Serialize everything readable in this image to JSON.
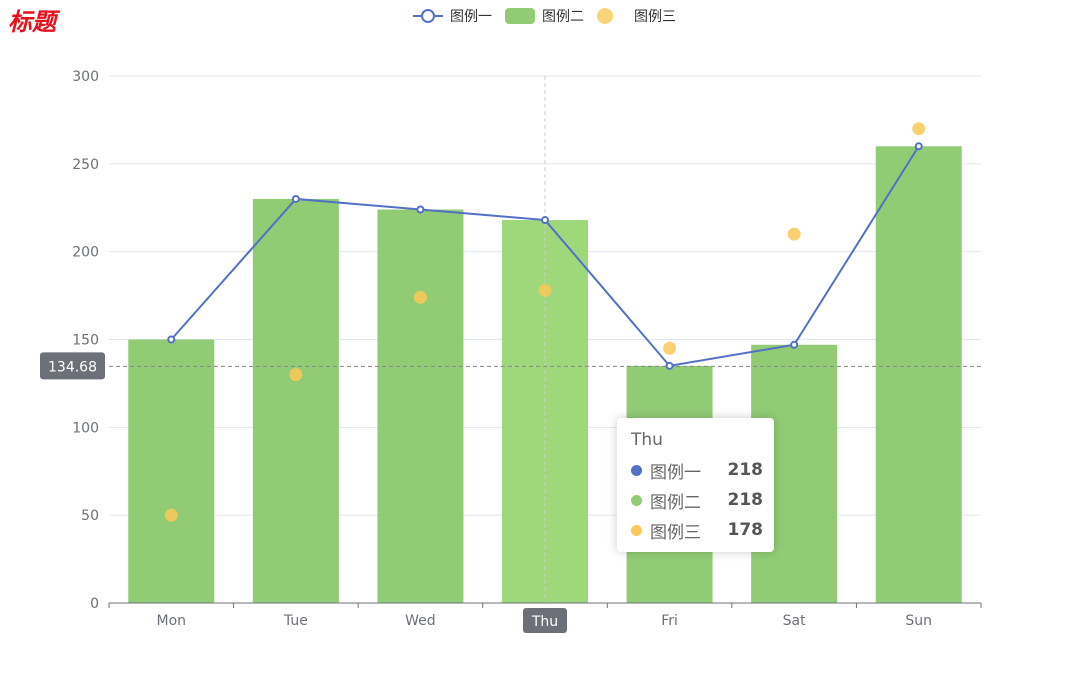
{
  "title": "标题",
  "legend": [
    "图例一",
    "图例二",
    "图例三"
  ],
  "colors": {
    "line": "#5470c6",
    "bar": "#91cc75",
    "scatter": "#fac858",
    "title": "#e8101c"
  },
  "chart_data": {
    "type": "bar",
    "categories": [
      "Mon",
      "Tue",
      "Wed",
      "Thu",
      "Fri",
      "Sat",
      "Sun"
    ],
    "series": [
      {
        "name": "图例一",
        "type": "line",
        "values": [
          150,
          230,
          224,
          218,
          135,
          147,
          260
        ]
      },
      {
        "name": "图例二",
        "type": "bar",
        "values": [
          150,
          230,
          224,
          218,
          135,
          147,
          260
        ]
      },
      {
        "name": "图例三",
        "type": "scatter",
        "values": [
          50,
          130,
          174,
          178,
          145,
          210,
          270
        ]
      }
    ],
    "ylim": [
      0,
      300
    ],
    "yticks": [
      0,
      50,
      100,
      150,
      200,
      250,
      300
    ],
    "grid": true,
    "legend_position": "top-center"
  },
  "axis_pointer": {
    "y_value": "134.68",
    "x_category": "Thu"
  },
  "tooltip": {
    "header": "Thu",
    "rows": [
      {
        "name": "图例一",
        "value": "218",
        "color": "#5470c6"
      },
      {
        "name": "图例二",
        "value": "218",
        "color": "#91cc75"
      },
      {
        "name": "图例三",
        "value": "178",
        "color": "#fac858"
      }
    ]
  }
}
